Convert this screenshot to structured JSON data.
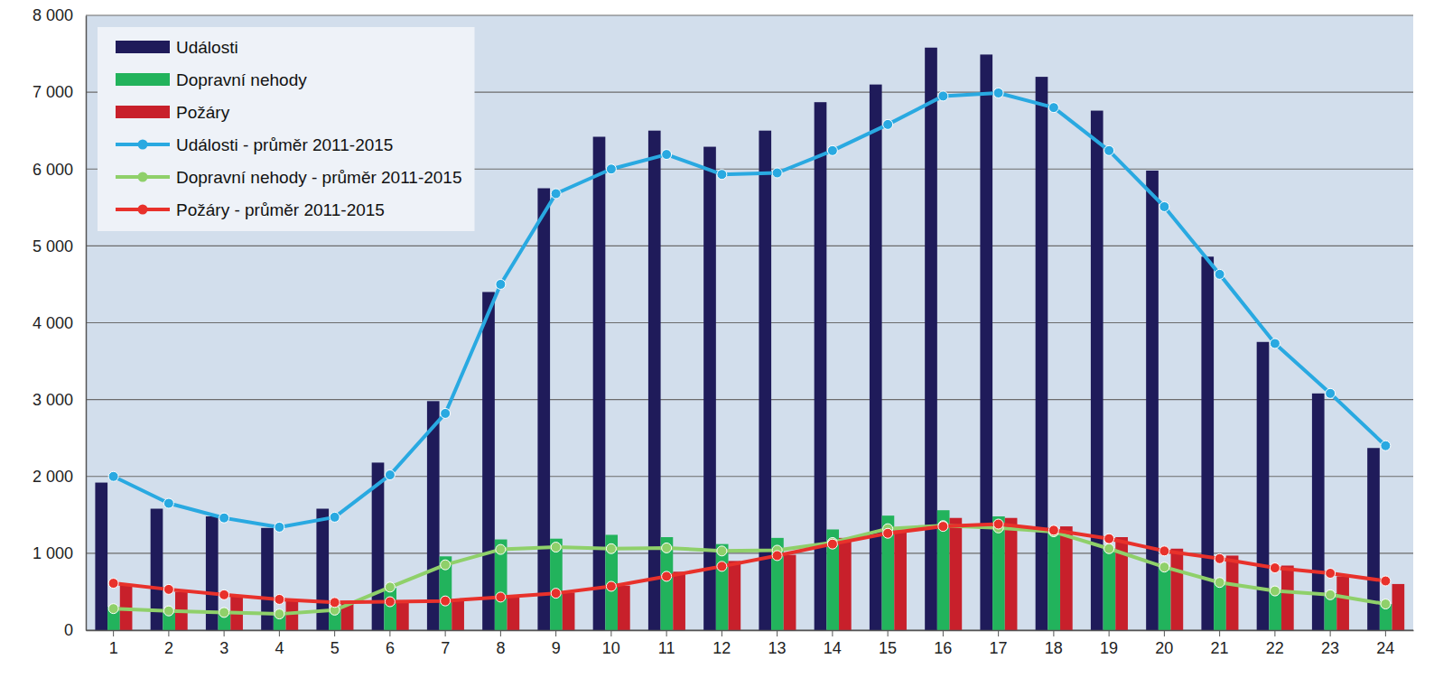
{
  "chart_data": {
    "type": "bar",
    "categories": [
      "1",
      "2",
      "3",
      "4",
      "5",
      "6",
      "7",
      "8",
      "9",
      "10",
      "11",
      "12",
      "13",
      "14",
      "15",
      "16",
      "17",
      "18",
      "19",
      "20",
      "21",
      "22",
      "23",
      "24"
    ],
    "series": [
      {
        "name": "Události",
        "type": "bar",
        "color": "#1f1b5a",
        "values": [
          1920,
          1580,
          1480,
          1330,
          1580,
          2180,
          2980,
          4400,
          5750,
          6420,
          6500,
          6290,
          6500,
          6870,
          7100,
          7580,
          7490,
          7200,
          6760,
          5980,
          4860,
          3750,
          3080,
          2370
        ]
      },
      {
        "name": "Dopravní nehody",
        "type": "bar",
        "color": "#22b35c",
        "values": [
          300,
          260,
          230,
          220,
          280,
          550,
          960,
          1180,
          1190,
          1240,
          1210,
          1120,
          1200,
          1310,
          1490,
          1560,
          1480,
          1290,
          1060,
          820,
          620,
          510,
          480,
          340
        ]
      },
      {
        "name": "Požáry",
        "type": "bar",
        "color": "#c8202b",
        "values": [
          590,
          500,
          450,
          400,
          380,
          380,
          390,
          430,
          490,
          580,
          760,
          900,
          980,
          1200,
          1300,
          1460,
          1460,
          1350,
          1210,
          1060,
          970,
          840,
          700,
          600
        ]
      },
      {
        "name": "Události - průměr 2011-2015",
        "type": "line",
        "color": "#29a9e1",
        "marker": "circle",
        "values": [
          2000,
          1650,
          1460,
          1340,
          1470,
          2020,
          2820,
          4500,
          5680,
          6000,
          6190,
          5930,
          5950,
          6240,
          6580,
          6950,
          6990,
          6800,
          6240,
          5510,
          4630,
          3730,
          3080,
          2400
        ]
      },
      {
        "name": "Dopravní nehody - průměr 2011-2015",
        "type": "line",
        "color": "#8fd06a",
        "marker": "circle",
        "values": [
          280,
          250,
          230,
          210,
          260,
          560,
          850,
          1050,
          1080,
          1060,
          1070,
          1030,
          1040,
          1140,
          1320,
          1360,
          1330,
          1280,
          1060,
          820,
          620,
          510,
          460,
          340
        ]
      },
      {
        "name": "Požáry - průměr 2011-2015",
        "type": "line",
        "color": "#e8312b",
        "marker": "circle",
        "values": [
          610,
          530,
          460,
          400,
          360,
          370,
          380,
          430,
          480,
          570,
          700,
          830,
          970,
          1120,
          1260,
          1350,
          1380,
          1300,
          1190,
          1030,
          930,
          810,
          740,
          640
        ]
      }
    ],
    "ylim": [
      0,
      8000
    ],
    "yticks": [
      0,
      {
        "value": 1000,
        "label": "1 000"
      },
      {
        "value": 2000,
        "label": "2 000"
      },
      {
        "value": 3000,
        "label": "3 000"
      },
      {
        "value": 4000,
        "label": "4 000"
      },
      {
        "value": 5000,
        "label": "5 000"
      },
      {
        "value": 6000,
        "label": "6 000"
      },
      {
        "value": 7000,
        "label": "7 000"
      },
      {
        "value": 8000,
        "label": "8 000"
      }
    ],
    "grid": true,
    "legend": "upper left"
  }
}
